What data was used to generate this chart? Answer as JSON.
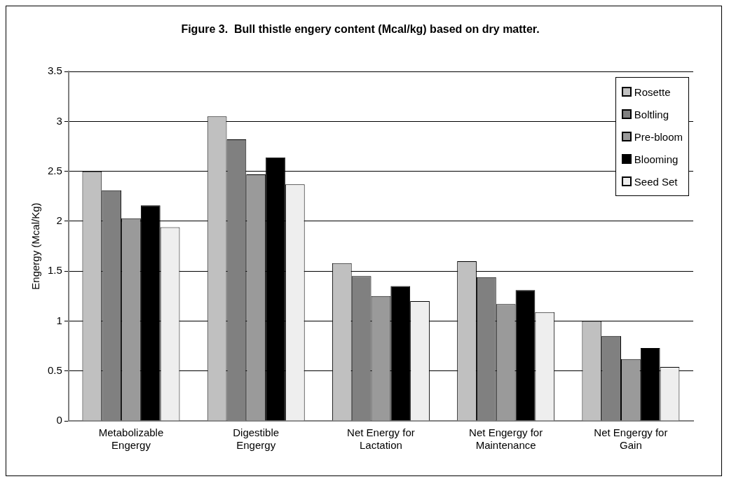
{
  "chart_data": {
    "type": "bar",
    "title": "Figure 3.  Bull thistle engery content (Mcal/kg) based on dry matter.",
    "ylabel": "Engergy (Mcal/Kg)",
    "categories": [
      "Metabolizable Engergy",
      "Digestible Engergy",
      "Net Energy for Lactation",
      "Net Engergy for Maintenance",
      "Net Engergy for Gain"
    ],
    "series": [
      {
        "name": "Rosette",
        "color": "#c0c0c0",
        "values": [
          2.5,
          3.05,
          1.58,
          1.6,
          1.0
        ]
      },
      {
        "name": "Boltling",
        "color": "#808080",
        "values": [
          2.31,
          2.82,
          1.45,
          1.44,
          0.85
        ]
      },
      {
        "name": "Pre-bloom",
        "color": "#9a9a9a",
        "values": [
          2.03,
          2.47,
          1.25,
          1.17,
          0.62
        ]
      },
      {
        "name": "Blooming",
        "color": "#000000",
        "values": [
          2.16,
          2.64,
          1.35,
          1.31,
          0.73
        ]
      },
      {
        "name": "Seed Set",
        "color": "#eeeeee",
        "values": [
          1.94,
          2.37,
          1.2,
          1.09,
          0.54
        ]
      }
    ],
    "ylim": [
      0,
      3.5
    ],
    "yticks": [
      0,
      0.5,
      1,
      1.5,
      2,
      2.5,
      3,
      3.5
    ],
    "grid": "y",
    "legend": "top right"
  }
}
